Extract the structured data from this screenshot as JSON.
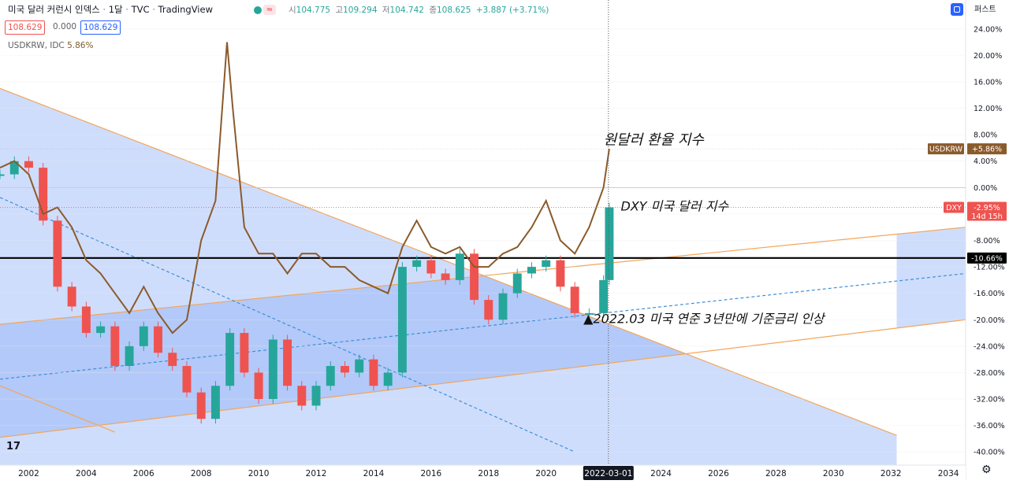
{
  "header": {
    "title": "미국 달러 커런시 인덱스",
    "interval": "1달",
    "exchange": "TVC",
    "source": "TradingView",
    "ohlc": [
      {
        "k": "시",
        "v": "104.775"
      },
      {
        "k": "고",
        "v": "109.294"
      },
      {
        "k": "저",
        "v": "104.742"
      },
      {
        "k": "종",
        "v": "108.625"
      }
    ],
    "change": "+3.887 (+3.71%)",
    "sell_price": "108.629",
    "spread": "0.000",
    "buy_price": "108.629",
    "scale_mode": "퍼스트",
    "colors": {
      "up": "#26a69a",
      "down": "#ef5350",
      "compare": "#8b5a2b",
      "accent": "#2962ff"
    }
  },
  "compare_legend": {
    "symbol": "USDKRW, IDC",
    "value": "5.86%"
  },
  "chart_data": {
    "type": "line",
    "scale": "percent",
    "ylim": [
      -42,
      26
    ],
    "xlim": [
      2001.0,
      2034.6
    ],
    "y_ticks": [
      "24.00%",
      "20.00%",
      "16.00%",
      "12.00%",
      "8.00%",
      "4.00%",
      "0.00%",
      "-4.00%",
      "-8.00%",
      "-12.00%",
      "-16.00%",
      "-20.00%",
      "-24.00%",
      "-28.00%",
      "-32.00%",
      "-36.00%",
      "-40.00%"
    ],
    "y_tick_values": [
      24,
      20,
      16,
      12,
      8,
      4,
      0,
      -4,
      -8,
      -12,
      -16,
      -20,
      -24,
      -28,
      -32,
      -36,
      -40
    ],
    "x_ticks": [
      "2002",
      "2004",
      "2006",
      "2008",
      "2010",
      "2012",
      "2014",
      "2016",
      "2018",
      "2020",
      "2024",
      "2026",
      "2028",
      "2030",
      "2032",
      "2034"
    ],
    "x_tick_values": [
      2002,
      2004,
      2006,
      2008,
      2010,
      2012,
      2014,
      2016,
      2018,
      2020,
      2024,
      2026,
      2028,
      2030,
      2032,
      2034
    ],
    "cursor_x": 2022.17,
    "cursor_label": "2022-03-01",
    "horizontal_line": {
      "y": -10.66,
      "label": "-10.66%"
    },
    "series": [
      {
        "name": "DXY",
        "style": "candles",
        "label": "-2.95%",
        "countdown": "14d 15h",
        "color": "#ef5350",
        "x": [
          2001.0,
          2001.5,
          2002.0,
          2002.5,
          2003.0,
          2003.5,
          2004.0,
          2004.5,
          2005.0,
          2005.5,
          2006.0,
          2006.5,
          2007.0,
          2007.5,
          2008.0,
          2008.5,
          2009.0,
          2009.5,
          2010.0,
          2010.5,
          2011.0,
          2011.5,
          2012.0,
          2012.5,
          2013.0,
          2013.5,
          2014.0,
          2014.5,
          2015.0,
          2015.5,
          2016.0,
          2016.5,
          2017.0,
          2017.5,
          2018.0,
          2018.5,
          2019.0,
          2019.5,
          2020.0,
          2020.5,
          2021.0,
          2021.5,
          2022.0,
          2022.2
        ],
        "y": [
          2,
          4,
          3,
          -5,
          -15,
          -18,
          -22,
          -21,
          -27,
          -24,
          -21,
          -25,
          -27,
          -31,
          -35,
          -30,
          -22,
          -28,
          -32,
          -23,
          -30,
          -33,
          -30,
          -27,
          -28,
          -26,
          -30,
          -28,
          -12,
          -11,
          -13,
          -14,
          -10,
          -17,
          -20,
          -16,
          -13,
          -12,
          -11,
          -15,
          -19,
          -19,
          -14,
          -3
        ]
      },
      {
        "name": "USDKRW",
        "style": "line",
        "label": "+5.86%",
        "color": "#8b5a2b",
        "x": [
          2001.0,
          2001.5,
          2002.0,
          2002.5,
          2003.0,
          2003.5,
          2004.0,
          2004.5,
          2005.0,
          2005.5,
          2006.0,
          2006.5,
          2007.0,
          2007.5,
          2008.0,
          2008.5,
          2008.9,
          2009.1,
          2009.5,
          2010.0,
          2010.5,
          2011.0,
          2011.5,
          2012.0,
          2012.5,
          2013.0,
          2013.5,
          2014.0,
          2014.5,
          2015.0,
          2015.5,
          2016.0,
          2016.5,
          2017.0,
          2017.5,
          2018.0,
          2018.5,
          2019.0,
          2019.5,
          2020.0,
          2020.5,
          2021.0,
          2021.5,
          2022.0,
          2022.2
        ],
        "y": [
          3,
          4,
          2,
          -4,
          -3,
          -6,
          -11,
          -13,
          -16,
          -19,
          -15,
          -19,
          -22,
          -20,
          -8,
          -2,
          22,
          12,
          -6,
          -10,
          -10,
          -13,
          -10,
          -10,
          -12,
          -12,
          -14,
          -15,
          -16,
          -9,
          -5,
          -9,
          -10,
          -9,
          -12,
          -12,
          -10,
          -9,
          -6,
          -2,
          -8,
          -10,
          -6,
          0,
          5.86
        ]
      }
    ],
    "channel": {
      "color": "#f2a65a",
      "fill": "#c7d7fb",
      "fill_dark": "#9db8f5",
      "upper_trend": [
        [
          2001.0,
          15.0
        ],
        [
          2032.2,
          -37.5
        ]
      ],
      "lower_trend": [
        [
          2001.0,
          -30.0
        ],
        [
          2005.0,
          -37.0
        ]
      ],
      "upper_rise": [
        [
          2001.0,
          -20.7
        ],
        [
          2034.6,
          -6.0
        ]
      ],
      "lower_rise": [
        [
          2001.0,
          -37.8
        ],
        [
          2034.6,
          -20.0
        ]
      ],
      "midline_rise": [
        [
          2001.0,
          -29.0
        ],
        [
          2034.6,
          -13.0
        ]
      ],
      "midline_fall": [
        [
          2001.0,
          -1.5
        ],
        [
          2021.0,
          -40.0
        ]
      ]
    },
    "annotations": [
      {
        "text": "원달러 환율 지수",
        "x": 2022.0,
        "y": 6.5,
        "size": 18
      },
      {
        "text": "DXY 미국 달러 지수",
        "x": 2022.6,
        "y": -3.5,
        "size": 16
      },
      {
        "text": "▲2022.03 미국 연준 3년만에 기준금리 인상",
        "x": 2021.3,
        "y": -20.5,
        "size": 16
      }
    ]
  }
}
